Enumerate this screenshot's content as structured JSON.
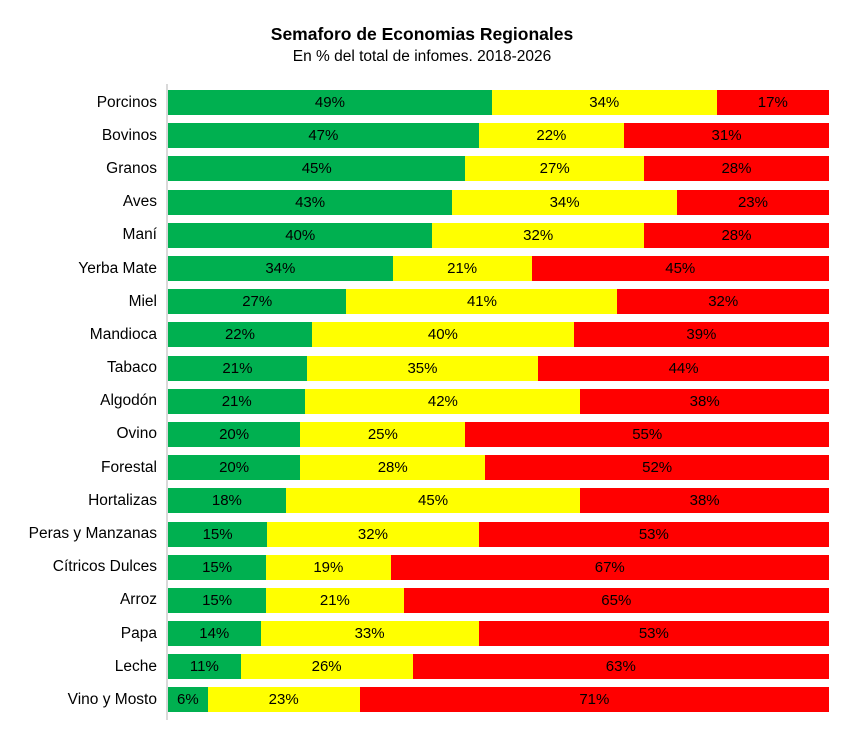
{
  "chart_data": {
    "type": "bar",
    "variant": "stacked-100",
    "orientation": "horizontal",
    "title": "Semaforo de Economias Regionales",
    "subtitle": "En % del total de infomes. 2018-2026",
    "value_suffix": "%",
    "xlim": [
      0,
      100
    ],
    "grid": false,
    "legend": "none",
    "axis_line_color": "#d9d9d9",
    "categories": [
      "Porcinos",
      "Bovinos",
      "Granos",
      "Aves",
      "Maní",
      "Yerba Mate",
      "Miel",
      "Mandioca",
      "Tabaco",
      "Algodón",
      "Ovino",
      "Forestal",
      "Hortalizas",
      "Peras y Manzanas",
      "Cítricos Dulces",
      "Arroz",
      "Papa",
      "Leche",
      "Vino y Mosto"
    ],
    "series": [
      {
        "name": "green",
        "color": "#00B050",
        "values": [
          49,
          47,
          45,
          43,
          40,
          34,
          27,
          22,
          21,
          21,
          20,
          20,
          18,
          15,
          15,
          15,
          14,
          11,
          6
        ]
      },
      {
        "name": "yellow",
        "color": "#FFFF00",
        "values": [
          34,
          22,
          27,
          34,
          32,
          21,
          41,
          40,
          35,
          42,
          25,
          28,
          45,
          32,
          19,
          21,
          33,
          26,
          23
        ]
      },
      {
        "name": "red",
        "color": "#FF0000",
        "values": [
          17,
          31,
          28,
          23,
          28,
          45,
          32,
          39,
          44,
          38,
          55,
          52,
          38,
          53,
          67,
          65,
          53,
          63,
          71
        ]
      }
    ]
  }
}
